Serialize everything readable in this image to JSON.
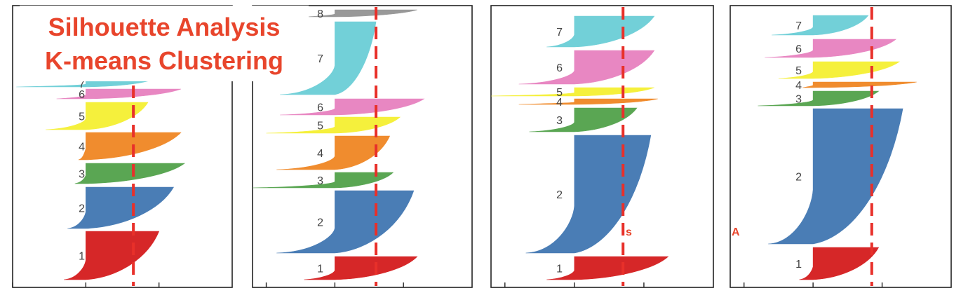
{
  "title": {
    "line1": "Silhouette Analysis",
    "line2": "K-means Clustering"
  },
  "fragments": [
    "s",
    "A"
  ],
  "colors": {
    "1": "#d62728",
    "2": "#4a7db5",
    "3": "#5aa653",
    "4": "#f08c2e",
    "5": "#f5f03c",
    "6": "#e887c2",
    "7": "#72d0d8",
    "8": "#999999",
    "mean_line": "#e8302a"
  },
  "chart_data": [
    {
      "type": "silhouette",
      "clusters": [
        {
          "label": "1",
          "top": 330,
          "bottom": 399,
          "min": -0.3,
          "max": 1.0
        },
        {
          "label": "2",
          "top": 267,
          "bottom": 326,
          "min": -0.25,
          "max": 1.2
        },
        {
          "label": "3",
          "top": 233,
          "bottom": 262,
          "min": -0.15,
          "max": 1.35
        },
        {
          "label": "4",
          "top": 189,
          "bottom": 228,
          "min": -0.1,
          "max": 1.3
        },
        {
          "label": "5",
          "top": 146,
          "bottom": 185,
          "min": -0.55,
          "max": 0.85
        },
        {
          "label": "6",
          "top": 127,
          "bottom": 141,
          "min": -0.4,
          "max": 1.3
        },
        {
          "label": "7",
          "top": 114,
          "bottom": 124,
          "min": -0.95,
          "max": 0.9
        }
      ],
      "mean": 0.65,
      "xlim": [
        -1,
        2.0
      ],
      "ticks": [
        -1,
        0,
        1
      ]
    },
    {
      "type": "silhouette",
      "clusters": [
        {
          "label": "1",
          "top": 366,
          "bottom": 399,
          "min": -0.45,
          "max": 1.2
        },
        {
          "label": "2",
          "top": 272,
          "bottom": 361,
          "min": -0.85,
          "max": 1.15
        },
        {
          "label": "3",
          "top": 246,
          "bottom": 268,
          "min": -1.2,
          "max": 0.85
        },
        {
          "label": "4",
          "top": 194,
          "bottom": 242,
          "min": -0.85,
          "max": 0.8
        },
        {
          "label": "5",
          "top": 167,
          "bottom": 190,
          "min": -1.0,
          "max": 0.95
        },
        {
          "label": "6",
          "top": 141,
          "bottom": 164,
          "min": -0.8,
          "max": 1.3
        },
        {
          "label": "7",
          "top": 31,
          "bottom": 135,
          "min": -0.8,
          "max": 0.6
        },
        {
          "label": "8",
          "top": 14,
          "bottom": 24,
          "min": -0.4,
          "max": 1.2
        }
      ],
      "mean": 0.6,
      "xlim": [
        -1.2,
        2.0
      ],
      "ticks": [
        -1,
        0,
        1
      ]
    },
    {
      "type": "silhouette",
      "clusters": [
        {
          "label": "1",
          "top": 366,
          "bottom": 399,
          "min": -0.4,
          "max": 1.35
        },
        {
          "label": "2",
          "top": 193,
          "bottom": 361,
          "min": -0.7,
          "max": 1.1
        },
        {
          "label": "3",
          "top": 154,
          "bottom": 188,
          "min": -0.65,
          "max": 0.9
        },
        {
          "label": "4",
          "top": 141,
          "bottom": 149,
          "min": -0.8,
          "max": 1.2
        },
        {
          "label": "5",
          "top": 125,
          "bottom": 137,
          "min": -1.2,
          "max": 1.15
        },
        {
          "label": "6",
          "top": 72,
          "bottom": 120,
          "min": -0.8,
          "max": 1.15
        },
        {
          "label": "7",
          "top": 23,
          "bottom": 67,
          "min": -0.4,
          "max": 1.15
        }
      ],
      "mean": 0.7,
      "xlim": [
        -1.2,
        2.0
      ],
      "ticks": [
        -1,
        0,
        1
      ]
    },
    {
      "type": "silhouette",
      "clusters": [
        {
          "label": "1",
          "top": 353,
          "bottom": 399,
          "min": -0.2,
          "max": 0.95
        },
        {
          "label": "2",
          "top": 155,
          "bottom": 348,
          "min": -0.65,
          "max": 1.3
        },
        {
          "label": "3",
          "top": 130,
          "bottom": 151,
          "min": -0.8,
          "max": 0.95
        },
        {
          "label": "4",
          "top": 117,
          "bottom": 125,
          "min": -0.15,
          "max": 1.5
        },
        {
          "label": "5",
          "top": 88,
          "bottom": 112,
          "min": -0.5,
          "max": 1.25
        },
        {
          "label": "6",
          "top": 56,
          "bottom": 82,
          "min": -0.7,
          "max": 1.2
        },
        {
          "label": "7",
          "top": 22,
          "bottom": 50,
          "min": -0.6,
          "max": 0.8
        }
      ],
      "mean": 0.85,
      "xlim": [
        -1.2,
        2.0
      ],
      "ticks": [
        -1,
        0,
        1
      ]
    }
  ]
}
